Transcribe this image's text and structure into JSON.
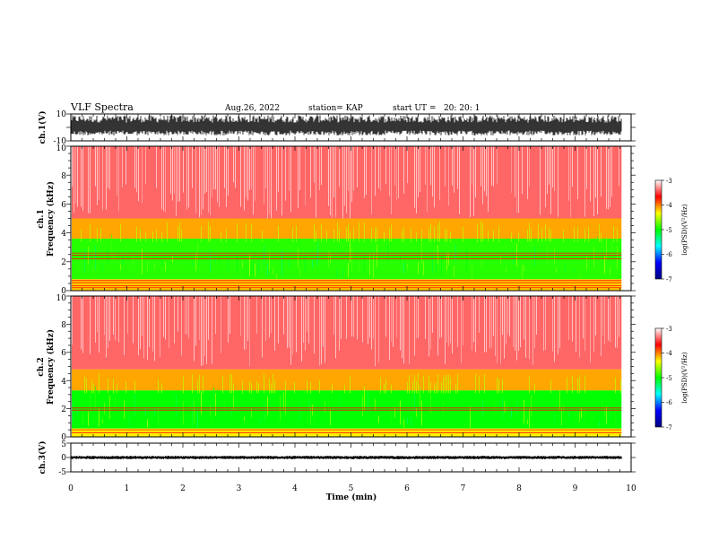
{
  "header": {
    "title": "VLF Spectra",
    "date": "Aug.26, 2022",
    "station": "station= KAP",
    "start": "start UT =   20: 20: 1"
  },
  "chart_data": [
    {
      "type": "line",
      "ylabel": "ch.1(V)",
      "ylim": [
        -10,
        10
      ],
      "y_ticks": [
        "10",
        "-10"
      ],
      "xlim": [
        0,
        10
      ],
      "x_end": 9.83,
      "signal": "noise",
      "amplitude_range": [
        -6,
        9
      ]
    },
    {
      "type": "heatmap",
      "ylabel": "ch.1\nFrequency (kHz)",
      "ylabel_line1": "ch.1",
      "ylabel_line2": "Frequency (kHz)",
      "ylim": [
        0,
        10
      ],
      "y_ticks": [
        "0",
        "2",
        "4",
        "6",
        "8",
        "10"
      ],
      "xlim": [
        0,
        10
      ],
      "x_end": 9.83,
      "colorbar": {
        "label": "log(PSD)(V²/Hz)",
        "range": [
          -7,
          -3
        ],
        "ticks": [
          "-3",
          "-4",
          "-5",
          "-6",
          "-7"
        ],
        "colors": [
          "#000080",
          "#0000ff",
          "#00ffff",
          "#00ff00",
          "#ffff00",
          "#ff0000",
          "#ffffff"
        ]
      },
      "bands": [
        {
          "f_from": 0,
          "f_to": 0.8,
          "level": -4.2
        },
        {
          "f_from": 0.8,
          "f_to": 3.6,
          "level": -4.9
        },
        {
          "f_from": 3.6,
          "f_to": 5.0,
          "level": -4.1
        },
        {
          "f_from": 5.0,
          "f_to": 10,
          "level": -3.4
        }
      ],
      "lines_khz": [
        0.2,
        0.35,
        0.55,
        0.7,
        2.2,
        2.45,
        2.6
      ]
    },
    {
      "type": "heatmap",
      "ylabel": "ch.2\nFrequency (kHz)",
      "ylabel_line1": "ch.2",
      "ylabel_line2": "Frequency (kHz)",
      "ylim": [
        0,
        10
      ],
      "y_ticks": [
        "0",
        "2",
        "4",
        "6",
        "8",
        "10"
      ],
      "xlim": [
        0,
        10
      ],
      "x_end": 9.83,
      "colorbar": {
        "label": "log(PSD)(V²/Hz)",
        "range": [
          -7,
          -3
        ],
        "ticks": [
          "-3",
          "-4",
          "-5",
          "-6",
          "-7"
        ],
        "colors": [
          "#000080",
          "#0000ff",
          "#00ffff",
          "#00ff00",
          "#ffff00",
          "#ff0000",
          "#ffffff"
        ]
      },
      "bands": [
        {
          "f_from": 0,
          "f_to": 0.6,
          "level": -4.3
        },
        {
          "f_from": 0.6,
          "f_to": 3.3,
          "level": -5.0
        },
        {
          "f_from": 3.3,
          "f_to": 4.8,
          "level": -4.1
        },
        {
          "f_from": 4.8,
          "f_to": 10,
          "level": -3.4
        }
      ],
      "lines_khz": [
        0.3,
        0.5,
        1.9,
        2.05
      ]
    },
    {
      "type": "line",
      "ylabel": "ch.3(V)",
      "ylim": [
        -5,
        5
      ],
      "y_ticks": [
        "5",
        "0",
        "-5"
      ],
      "xlim": [
        0,
        10
      ],
      "x_end": 9.83,
      "signal": "noise",
      "amplitude_range": [
        -0.6,
        0.6
      ],
      "xlabel": "Time (min)",
      "x_ticks": [
        "0",
        "1",
        "2",
        "3",
        "4",
        "5",
        "6",
        "7",
        "8",
        "9",
        "10"
      ]
    }
  ]
}
